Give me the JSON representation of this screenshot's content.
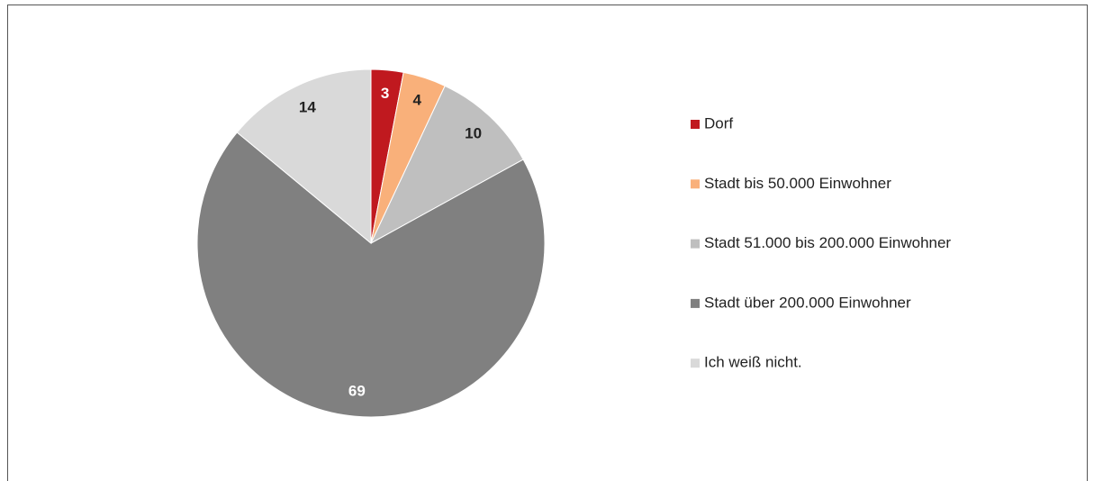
{
  "chart_data": {
    "type": "pie",
    "categories": [
      "Dorf",
      "Stadt bis 50.000 Einwohner",
      "Stadt 51.000 bis 200.000 Einwohner",
      "Stadt über 200.000 Einwohner",
      "Ich weiß nicht."
    ],
    "values": [
      3,
      4,
      10,
      69,
      14
    ],
    "colors": [
      "#c0191f",
      "#f9b07a",
      "#bfbfbf",
      "#808080",
      "#d9d9d9"
    ],
    "legend": "right"
  }
}
